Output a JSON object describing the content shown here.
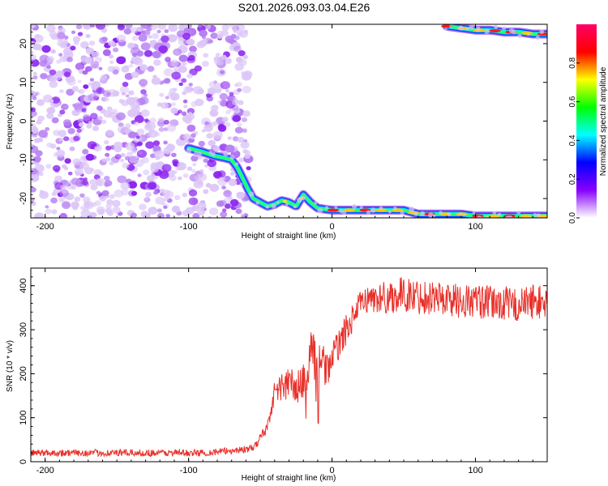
{
  "title": "S201.2026.093.03.04.E26",
  "chart_data": [
    {
      "type": "heatmap",
      "name": "spectrogram",
      "xlabel": "Height of straight line (km)",
      "ylabel": "Frequency (Hz)",
      "xlim": [
        -210,
        150
      ],
      "ylim": [
        -25,
        25
      ],
      "xticks": [
        -200,
        -100,
        0,
        100
      ],
      "yticks": [
        20,
        10,
        0,
        -10,
        -20
      ],
      "colorbar": {
        "label": "Normalized spectral amplitude",
        "range": [
          0,
          1
        ],
        "ticks": [
          0.0,
          0.2,
          0.4,
          0.6,
          0.8
        ],
        "colors": [
          "#ffffff",
          "#8800ff",
          "#0000ff",
          "#00ffff",
          "#00ff00",
          "#ffff00",
          "#ff0000",
          "#ff0066"
        ]
      },
      "noise_region_x": [
        -210,
        -58
      ],
      "ridges": [
        {
          "name": "descending-ridge",
          "x": [
            -100,
            -90,
            -82,
            -75,
            -70,
            -66,
            -62,
            -58,
            -55,
            -50,
            -45,
            -40,
            -35,
            -30,
            -25,
            -20,
            -15,
            -10,
            0,
            10,
            20,
            30,
            40,
            50,
            60,
            70,
            80,
            90,
            100,
            120,
            140,
            150
          ],
          "freq": [
            -7,
            -8,
            -9,
            -9.5,
            -10,
            -12,
            -15,
            -18,
            -20,
            -21,
            -22,
            -21.5,
            -20.5,
            -21,
            -22,
            -19,
            -21,
            -22.5,
            -23,
            -23,
            -23,
            -23,
            -23,
            -23,
            -24,
            -24,
            -24,
            -24,
            -24.5,
            -24.5,
            -24.5,
            -24.5
          ]
        },
        {
          "name": "top-ridge",
          "x": [
            80,
            90,
            100,
            110,
            120,
            130,
            140,
            150
          ],
          "freq": [
            24.5,
            24,
            23.5,
            23.5,
            23,
            23,
            22.5,
            22.5
          ]
        }
      ]
    },
    {
      "type": "line",
      "name": "snr",
      "xlabel": "Height of straight line (km)",
      "ylabel": "SNR (10 * v/v)",
      "xlim": [
        -210,
        150
      ],
      "ylim": [
        0,
        440
      ],
      "xticks": [
        -200,
        -100,
        0,
        100
      ],
      "yticks": [
        0,
        100,
        200,
        300,
        400
      ],
      "color": "#e8302a",
      "series": [
        {
          "name": "SNR",
          "x": [
            -210,
            -180,
            -150,
            -120,
            -90,
            -70,
            -55,
            -45,
            -40,
            -35,
            -30,
            -25,
            -20,
            -18,
            -15,
            -12,
            -10,
            -8,
            -5,
            0,
            5,
            10,
            15,
            20,
            25,
            30,
            40,
            50,
            60,
            70,
            80,
            90,
            100,
            110,
            120,
            130,
            140,
            150
          ],
          "y": [
            20,
            20,
            20,
            20,
            20,
            25,
            30,
            80,
            160,
            170,
            180,
            165,
            180,
            150,
            270,
            240,
            130,
            250,
            210,
            230,
            270,
            300,
            330,
            360,
            370,
            370,
            375,
            380,
            375,
            375,
            370,
            365,
            365,
            360,
            360,
            355,
            365,
            360
          ],
          "noise": [
            8,
            8,
            8,
            8,
            8,
            8,
            8,
            15,
            25,
            35,
            40,
            40,
            45,
            60,
            50,
            60,
            90,
            50,
            40,
            40,
            35,
            35,
            30,
            30,
            30,
            35,
            40,
            40,
            40,
            40,
            40,
            40,
            40,
            40,
            40,
            40,
            40,
            40
          ]
        }
      ]
    }
  ]
}
